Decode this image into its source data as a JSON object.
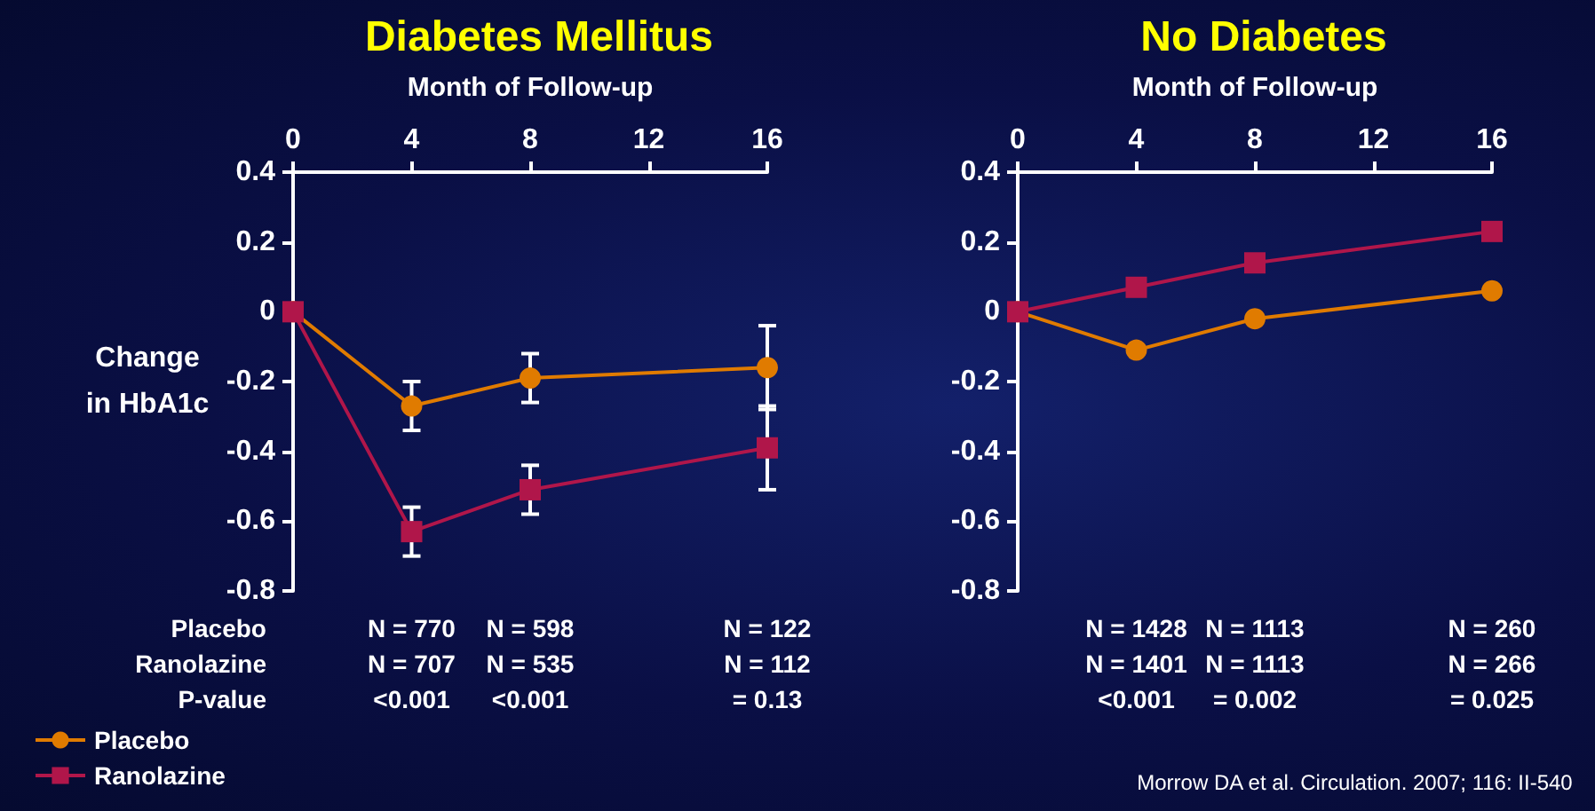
{
  "chart_data": [
    {
      "type": "line",
      "title": "Diabetes Mellitus",
      "xlabel": "Month of Follow-up",
      "ylabel": "Change\nin HbA1c",
      "x": [
        0,
        4,
        8,
        16
      ],
      "xlim": [
        0,
        16
      ],
      "xticks": [
        0,
        4,
        8,
        12,
        16
      ],
      "ylim": [
        -0.8,
        0.4
      ],
      "yticks": [
        -0.8,
        -0.6,
        -0.4,
        -0.2,
        0,
        0.2,
        0.4
      ],
      "grid": false,
      "legend": "bottom left",
      "series": [
        {
          "name": "Placebo",
          "color": "#e07b00",
          "marker": "circle",
          "values": [
            0,
            -0.27,
            -0.19,
            -0.16
          ],
          "errors": [
            null,
            0.07,
            0.07,
            0.12
          ]
        },
        {
          "name": "Ranolazine",
          "color": "#b0164a",
          "marker": "square",
          "values": [
            0,
            -0.63,
            -0.51,
            -0.39
          ],
          "errors": [
            null,
            0.07,
            0.07,
            0.12
          ]
        }
      ],
      "annotations": [
        "Placebo",
        "Ranolazine",
        "P-value",
        "N = 770",
        "N = 707",
        "<0.001",
        "N = 598",
        "N = 535",
        "<0.001",
        "N = 122",
        "N = 112",
        "= 0.13"
      ]
    },
    {
      "type": "line",
      "title": "No Diabetes",
      "xlabel": "Month of Follow-up",
      "x": [
        0,
        4,
        8,
        16
      ],
      "xlim": [
        0,
        16
      ],
      "xticks": [
        0,
        4,
        8,
        12,
        16
      ],
      "ylim": [
        -0.8,
        0.4
      ],
      "yticks": [
        -0.8,
        -0.6,
        -0.4,
        -0.2,
        0,
        0.2,
        0.4
      ],
      "grid": false,
      "legend": false,
      "series": [
        {
          "color": "#e07b00",
          "marker": "circle",
          "values": [
            0,
            -0.11,
            -0.02,
            0.06
          ]
        },
        {
          "color": "#b0164a",
          "marker": "square",
          "values": [
            0,
            0.07,
            0.14,
            0.23
          ]
        }
      ],
      "annotations": [
        "N = 1428",
        "N = 1401",
        "<0.001",
        "N = 1113",
        "N = 1113",
        "= 0.002",
        "N = 260",
        "N = 266",
        "= 0.025",
        "Morrow DA et al. Circulation. 2007; 116: II-540"
      ]
    }
  ]
}
